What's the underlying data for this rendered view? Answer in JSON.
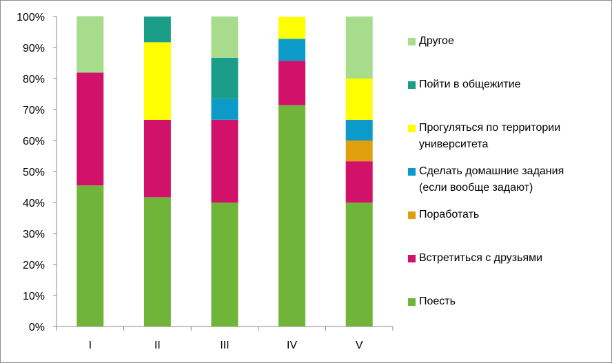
{
  "chart_data": {
    "type": "bar",
    "stacked": true,
    "normalized": true,
    "categories": [
      "I",
      "II",
      "III",
      "IV",
      "V"
    ],
    "y_ticks": [
      "0%",
      "10%",
      "20%",
      "30%",
      "40%",
      "50%",
      "60%",
      "70%",
      "80%",
      "90%",
      "100%"
    ],
    "ylim": [
      0,
      100
    ],
    "legend_position": "right",
    "series": [
      {
        "name": "Поесть",
        "color": "#70b53a",
        "values": [
          45.5,
          41.7,
          40.0,
          71.4,
          40.0
        ]
      },
      {
        "name": "Встретиться с друзьями",
        "color": "#d2126a",
        "values": [
          36.4,
          25.0,
          26.7,
          14.3,
          13.3
        ]
      },
      {
        "name": "Поработать",
        "color": "#e09f0c",
        "values": [
          0,
          0,
          0,
          0,
          6.7
        ]
      },
      {
        "name": "Сделать домашние задания\n(если вообще задают)",
        "color": "#0c9bc9",
        "values": [
          0,
          0,
          6.7,
          7.1,
          6.7
        ]
      },
      {
        "name": "Прогуляться по территории\nуниверситета",
        "color": "#ffff00",
        "values": [
          0,
          25.0,
          0,
          7.1,
          13.3
        ]
      },
      {
        "name": "Пойти в общежитие",
        "color": "#1a9e8a",
        "values": [
          0,
          8.3,
          13.3,
          0,
          0
        ]
      },
      {
        "name": "Другое",
        "color": "#a6dc8c",
        "values": [
          18.2,
          0,
          13.3,
          0,
          20.0
        ]
      }
    ]
  }
}
